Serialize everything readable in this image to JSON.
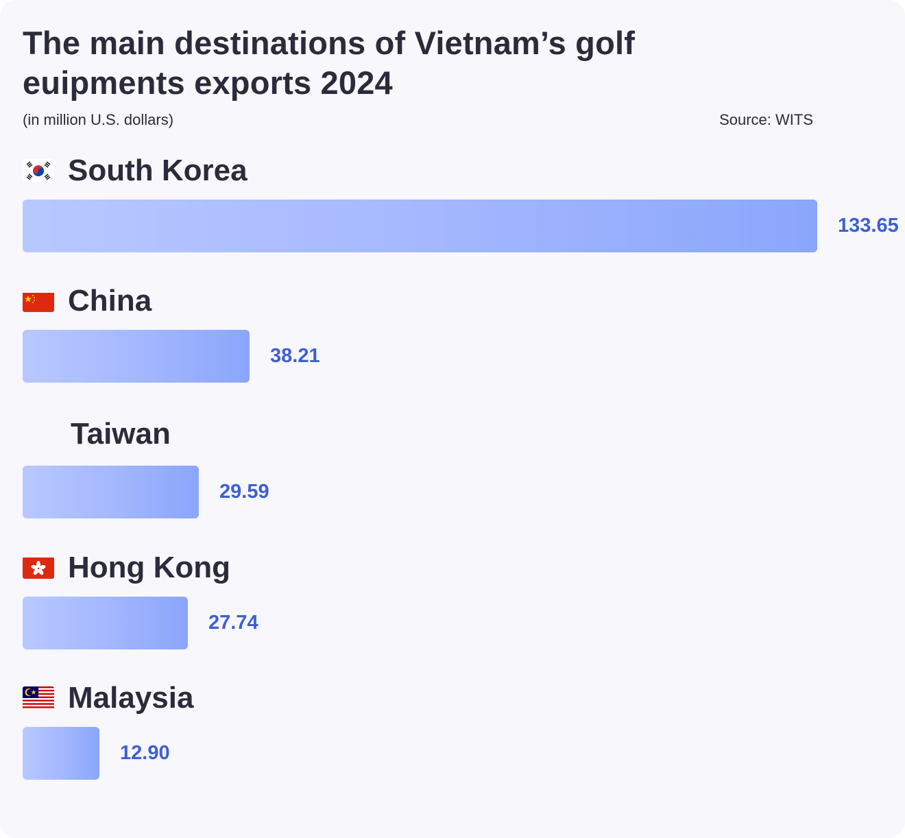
{
  "chart_data": {
    "type": "bar",
    "orientation": "horizontal",
    "title": "The main destinations of Vietnam’s golf euipments exports 2024",
    "subtitle": "(in million U.S. dollars)",
    "source": "Source: WITS",
    "categories": [
      "South Korea",
      "China",
      "Taiwan",
      "Hong Kong",
      "Malaysia"
    ],
    "values": [
      133.65,
      38.21,
      29.59,
      27.74,
      12.9
    ],
    "value_labels": [
      "133.65",
      "38.21",
      "29.59",
      "27.74",
      "12.90"
    ],
    "flags": [
      "south-korea-flag-icon",
      "china-flag-icon",
      "",
      "hong-kong-flag-icon",
      "malaysia-flag-icon"
    ],
    "xlim": [
      0,
      133.65
    ],
    "grid": false,
    "legend": "none",
    "colors": {
      "bar_start": "#b8c8ff",
      "bar_end": "#8aa6fb",
      "value_text": "#3d5fd1",
      "title_text": "#2b2b3b",
      "background": "#f7f7fc"
    }
  }
}
